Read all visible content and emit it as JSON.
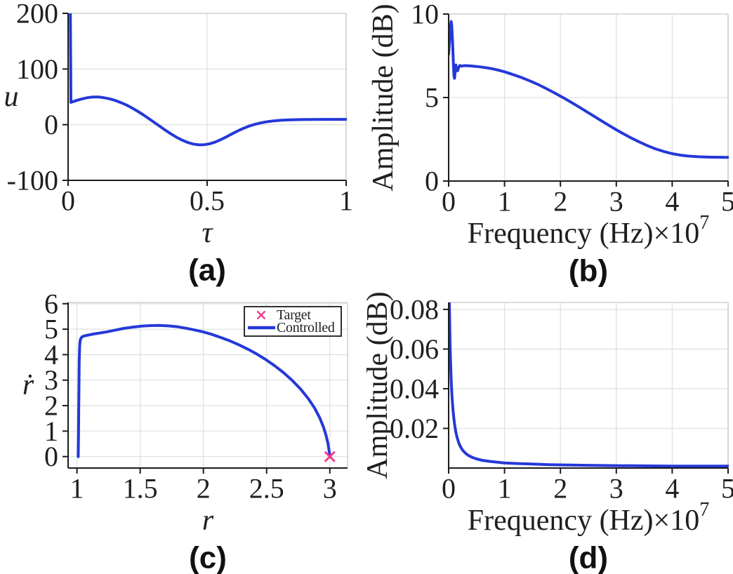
{
  "figure": {
    "background": "#ffffff",
    "colors": {
      "line": "#2438d8",
      "target": "#ee3e8c",
      "grid": "#dfe2e2",
      "box": "#cdd2d2",
      "axis": "#1c1c1c",
      "text": "#1f1f1f",
      "legend_border": "#1a1a1a"
    }
  },
  "chart_data": [
    {
      "id": "a",
      "type": "line",
      "caption": "(a)",
      "xlabel": "τ",
      "xlabel_italic": true,
      "ylabel": "u",
      "ylabel_italic": true,
      "ylabel_rotation": 0,
      "xlim": [
        0,
        1
      ],
      "ylim": [
        -100,
        200
      ],
      "xticks": {
        "values": [
          0,
          0.5,
          1
        ],
        "labels": [
          "0",
          "0.5",
          "1"
        ]
      },
      "yticks": {
        "values": [
          -100,
          0,
          100,
          200
        ],
        "labels": [
          "-100",
          "0",
          "100",
          "200"
        ]
      },
      "grid": true,
      "series": [
        {
          "name": "u",
          "color_ref": "line",
          "x": [
            0.008,
            0.01,
            0.03,
            0.05,
            0.07,
            0.09,
            0.11,
            0.13,
            0.15,
            0.17,
            0.19,
            0.21,
            0.23,
            0.25,
            0.27,
            0.29,
            0.31,
            0.33,
            0.35,
            0.37,
            0.39,
            0.41,
            0.43,
            0.45,
            0.47,
            0.49,
            0.51,
            0.53,
            0.55,
            0.57,
            0.59,
            0.61,
            0.63,
            0.65,
            0.67,
            0.69,
            0.71,
            0.74,
            0.77,
            0.8,
            0.84,
            0.88,
            0.92,
            1.0
          ],
          "y": [
            200,
            40,
            43.5,
            46.3,
            48.5,
            49.8,
            49.7,
            48.4,
            46.3,
            43.4,
            39.7,
            35.2,
            30,
            24.2,
            17.8,
            11,
            4,
            -3,
            -10,
            -16.6,
            -22.6,
            -27.8,
            -31.9,
            -34.8,
            -36.2,
            -36,
            -34.2,
            -31,
            -26.7,
            -21.7,
            -16.4,
            -11.3,
            -6.7,
            -2.8,
            0.4,
            2.9,
            4.9,
            6.9,
            8.1,
            8.8,
            9.2,
            9.4,
            9.5,
            9.5
          ]
        }
      ]
    },
    {
      "id": "b",
      "type": "line",
      "caption": "(b)",
      "xlabel": "Frequency (Hz)×10",
      "xlabel_sup": "7",
      "ylabel": "Amplitude (dB)",
      "ylabel_rotation": -90,
      "xlim": [
        0,
        5
      ],
      "ylim": [
        0,
        10
      ],
      "xticks": {
        "values": [
          0,
          1,
          2,
          3,
          4,
          5
        ],
        "labels": [
          "0",
          "1",
          "2",
          "3",
          "4",
          "5"
        ]
      },
      "yticks": {
        "values": [
          0,
          5,
          10
        ],
        "labels": [
          "0",
          "5",
          "10"
        ]
      },
      "grid": true,
      "series": [
        {
          "name": "amplitude",
          "color_ref": "line",
          "x": [
            0,
            0.02,
            0.035,
            0.045,
            0.055,
            0.07,
            0.085,
            0.095,
            0.105,
            0.115,
            0.13,
            0.145,
            0.16,
            0.18,
            0.2,
            0.23,
            0.26,
            0.3,
            0.35,
            0.4,
            0.5,
            0.6,
            0.7,
            0.8,
            0.9,
            1.0,
            1.15,
            1.3,
            1.45,
            1.6,
            1.75,
            1.9,
            2.05,
            2.2,
            2.35,
            2.5,
            2.65,
            2.8,
            2.95,
            3.1,
            3.25,
            3.4,
            3.55,
            3.7,
            3.85,
            4.0,
            4.15,
            4.3,
            4.5,
            4.7,
            5.0
          ],
          "y": [
            7.6,
            8.6,
            9.3,
            9.55,
            9.3,
            8.3,
            7.0,
            6.3,
            6.15,
            6.5,
            6.95,
            6.7,
            6.6,
            6.8,
            6.92,
            6.88,
            6.9,
            6.91,
            6.9,
            6.89,
            6.86,
            6.82,
            6.77,
            6.71,
            6.63,
            6.54,
            6.38,
            6.2,
            6.0,
            5.78,
            5.53,
            5.27,
            4.99,
            4.7,
            4.4,
            4.09,
            3.78,
            3.47,
            3.17,
            2.88,
            2.61,
            2.36,
            2.13,
            1.93,
            1.77,
            1.64,
            1.55,
            1.49,
            1.45,
            1.43,
            1.42
          ]
        }
      ]
    },
    {
      "id": "c",
      "type": "line",
      "caption": "(c)",
      "xlabel": "r",
      "xlabel_italic": true,
      "ylabel": "ṙ",
      "ylabel_italic": true,
      "ylabel_rotation": 0,
      "xlim": [
        0.93,
        3.14
      ],
      "ylim": [
        -0.45,
        6.05
      ],
      "xticks": {
        "values": [
          1,
          1.5,
          2,
          2.5,
          3
        ],
        "labels": [
          "1",
          "1.5",
          "2",
          "2.5",
          "3"
        ]
      },
      "yticks": {
        "values": [
          0,
          1,
          2,
          3,
          4,
          5,
          6
        ],
        "labels": [
          "0",
          "1",
          "2",
          "3",
          "4",
          "5",
          "6"
        ]
      },
      "grid": true,
      "series": [
        {
          "name": "controlled",
          "color_ref": "line",
          "x": [
            1.01,
            1.012,
            1.014,
            1.016,
            1.018,
            1.021,
            1.025,
            1.03,
            1.04,
            1.06,
            1.09,
            1.13,
            1.18,
            1.24,
            1.3,
            1.37,
            1.44,
            1.51,
            1.58,
            1.65,
            1.72,
            1.79,
            1.86,
            1.93,
            2.0,
            2.07,
            2.14,
            2.21,
            2.28,
            2.35,
            2.42,
            2.49,
            2.56,
            2.63,
            2.7,
            2.77,
            2.83,
            2.88,
            2.92,
            2.95,
            2.97,
            2.985,
            2.995,
            3.0
          ],
          "y": [
            0,
            0.8,
            1.8,
            2.8,
            3.7,
            4.3,
            4.55,
            4.63,
            4.7,
            4.74,
            4.77,
            4.81,
            4.85,
            4.9,
            4.96,
            5.03,
            5.08,
            5.12,
            5.14,
            5.15,
            5.13,
            5.1,
            5.04,
            4.97,
            4.89,
            4.79,
            4.67,
            4.54,
            4.39,
            4.22,
            4.03,
            3.82,
            3.58,
            3.31,
            3.0,
            2.64,
            2.27,
            1.9,
            1.52,
            1.15,
            0.83,
            0.52,
            0.2,
            0.02
          ]
        }
      ],
      "markers": [
        {
          "label": "Target",
          "shape": "x",
          "x": [
            3.0
          ],
          "y": [
            0.0
          ],
          "color_ref": "target"
        }
      ],
      "legend": {
        "position": "top-right",
        "entries": [
          {
            "swatch": "x-marker",
            "label": "Target",
            "color_ref": "target"
          },
          {
            "swatch": "line",
            "label": "Controlled",
            "color_ref": "line"
          }
        ]
      }
    },
    {
      "id": "d",
      "type": "line",
      "caption": "(d)",
      "xlabel": "Frequency (Hz)×10",
      "xlabel_sup": "7",
      "ylabel": "Amplitude (dB)",
      "ylabel_rotation": -90,
      "xlim": [
        0,
        5
      ],
      "ylim": [
        0,
        0.0835
      ],
      "xticks": {
        "values": [
          0,
          1,
          2,
          3,
          4,
          5
        ],
        "labels": [
          "0",
          "1",
          "2",
          "3",
          "4",
          "5"
        ]
      },
      "yticks": {
        "values": [
          0.02,
          0.04,
          0.06,
          0.08
        ],
        "labels": [
          "0.02",
          "0.04",
          "0.06",
          "0.08"
        ]
      },
      "grid": true,
      "series": [
        {
          "name": "amplitude",
          "color_ref": "line",
          "x": [
            0.012,
            0.02,
            0.028,
            0.036,
            0.045,
            0.055,
            0.065,
            0.08,
            0.095,
            0.11,
            0.13,
            0.15,
            0.18,
            0.21,
            0.25,
            0.3,
            0.35,
            0.42,
            0.5,
            0.6,
            0.72,
            0.85,
            1.0,
            1.2,
            1.5,
            1.8,
            2.2,
            2.6,
            3.0,
            3.5,
            4.0,
            4.5,
            5.0
          ],
          "y": [
            0.0835,
            0.071,
            0.06,
            0.0515,
            0.0445,
            0.0385,
            0.0338,
            0.0285,
            0.0245,
            0.0213,
            0.018,
            0.0156,
            0.0128,
            0.0108,
            0.009,
            0.0075,
            0.0064,
            0.0054,
            0.0046,
            0.0039,
            0.0034,
            0.003,
            0.0026,
            0.0023,
            0.002,
            0.0017,
            0.0015,
            0.0013,
            0.0012,
            0.0011,
            0.001,
            0.001,
            0.001
          ]
        }
      ]
    }
  ]
}
